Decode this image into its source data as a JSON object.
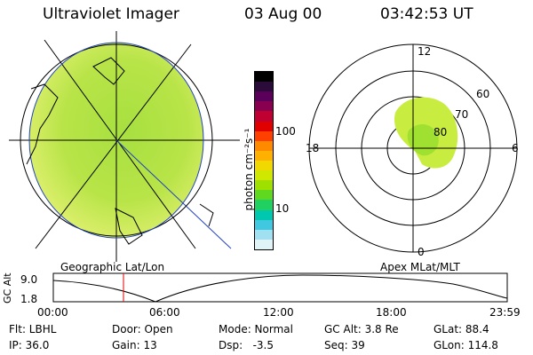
{
  "header": {
    "instrument": "Ultraviolet Imager",
    "date": "03 Aug 00",
    "time": "03:42:53 UT"
  },
  "colorbar": {
    "unit_label": "photon cm⁻²s⁻¹",
    "tick_labels": [
      "100",
      "10"
    ],
    "colors": [
      "#000000",
      "#2a0b3a",
      "#5a005a",
      "#8a0050",
      "#c00030",
      "#e00000",
      "#ff4000",
      "#ff8a00",
      "#ffb000",
      "#f0d800",
      "#d0e800",
      "#a0e000",
      "#60d820",
      "#20d060",
      "#00c8b0",
      "#40c8e0",
      "#a0e0f0",
      "#e0f4f8"
    ]
  },
  "left_panel": {
    "caption": "Geographic Lat/Lon",
    "disk_color": "#b0e040"
  },
  "right_panel": {
    "caption": "Apex MLat/MLT",
    "mlt_labels": {
      "top": "12",
      "left": "18",
      "right": "6",
      "bottom": "0"
    },
    "mlat_labels": [
      "60",
      "70",
      "80"
    ]
  },
  "altitude_plot": {
    "axis_label": "GC Alt",
    "y_ticks": [
      "9.0",
      "1.8"
    ],
    "x_ticks": [
      "00:00",
      "06:00",
      "12:00",
      "18:00",
      "23:59"
    ]
  },
  "info": {
    "flt": "Flt: LBHL",
    "ip": "IP: 36.0",
    "door": "Door: Open",
    "gain": "Gain: 13",
    "mode": "Mode: Normal",
    "dsp": "Dsp:   -3.5",
    "gcalt": "GC Alt: 3.8 Re",
    "seq": "Seq: 39",
    "glat": "GLat: 88.4",
    "glon": "GLon: 114.8"
  }
}
